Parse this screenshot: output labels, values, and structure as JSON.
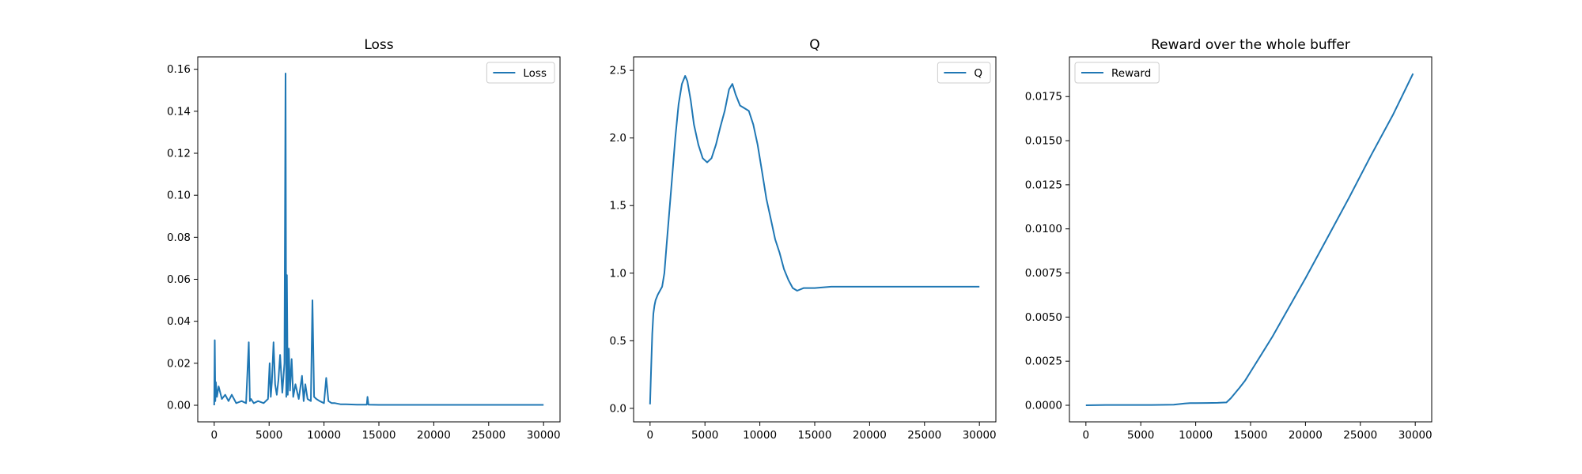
{
  "colors": {
    "series": "#1f77b4",
    "axes": "#000000",
    "legend_frame": "#cccccc",
    "background": "#ffffff"
  },
  "chart_data": [
    {
      "type": "line",
      "title": "Loss",
      "xlabel": "",
      "ylabel": "",
      "xlim": [
        -1500,
        31500
      ],
      "ylim": [
        -0.0079,
        0.1659
      ],
      "xticks": [
        0,
        5000,
        10000,
        15000,
        20000,
        25000,
        30000
      ],
      "xtick_labels": [
        "0",
        "5000",
        "10000",
        "15000",
        "20000",
        "25000",
        "30000"
      ],
      "yticks": [
        0.0,
        0.02,
        0.04,
        0.06,
        0.08,
        0.1,
        0.12,
        0.14,
        0.16
      ],
      "ytick_labels": [
        "0.00",
        "0.02",
        "0.04",
        "0.06",
        "0.08",
        "0.10",
        "0.12",
        "0.14",
        "0.16"
      ],
      "grid": false,
      "legend": "top-right",
      "series": [
        {
          "name": "Loss",
          "x": [
            0,
            50,
            100,
            150,
            250,
            400,
            700,
            1000,
            1300,
            1600,
            2000,
            2500,
            2900,
            3150,
            3250,
            3350,
            3600,
            4000,
            4500,
            4900,
            5050,
            5150,
            5250,
            5400,
            5550,
            5700,
            5850,
            6000,
            6200,
            6400,
            6500,
            6560,
            6620,
            6700,
            6800,
            6900,
            7050,
            7200,
            7400,
            7700,
            8000,
            8150,
            8300,
            8500,
            8800,
            8950,
            9100,
            9300,
            9600,
            10000,
            10200,
            10400,
            10700,
            11000,
            11500,
            12000,
            13000,
            13900,
            13960,
            14050,
            15000,
            17500,
            20000,
            22500,
            25000,
            27500,
            30000
          ],
          "y": [
            0.0,
            0.031,
            0.002,
            0.011,
            0.004,
            0.009,
            0.003,
            0.005,
            0.002,
            0.005,
            0.001,
            0.002,
            0.001,
            0.03,
            0.002,
            0.003,
            0.001,
            0.002,
            0.001,
            0.003,
            0.02,
            0.004,
            0.011,
            0.03,
            0.01,
            0.005,
            0.012,
            0.024,
            0.006,
            0.02,
            0.158,
            0.004,
            0.062,
            0.005,
            0.027,
            0.007,
            0.022,
            0.004,
            0.01,
            0.003,
            0.014,
            0.002,
            0.01,
            0.003,
            0.002,
            0.05,
            0.004,
            0.003,
            0.002,
            0.001,
            0.013,
            0.002,
            0.001,
            0.001,
            0.0005,
            0.0005,
            0.0003,
            0.0003,
            0.004,
            0.0003,
            0.0002,
            0.0002,
            0.0002,
            0.0002,
            0.0002,
            0.0002,
            0.0002
          ]
        }
      ]
    },
    {
      "type": "line",
      "title": "Q",
      "xlabel": "",
      "ylabel": "",
      "xlim": [
        -1500,
        31500
      ],
      "ylim": [
        -0.1,
        2.6
      ],
      "xticks": [
        0,
        5000,
        10000,
        15000,
        20000,
        25000,
        30000
      ],
      "xtick_labels": [
        "0",
        "5000",
        "10000",
        "15000",
        "20000",
        "25000",
        "30000"
      ],
      "yticks": [
        0.0,
        0.5,
        1.0,
        1.5,
        2.0,
        2.5
      ],
      "ytick_labels": [
        "0.0",
        "0.5",
        "1.0",
        "1.5",
        "2.0",
        "2.5"
      ],
      "grid": false,
      "legend": "top-right",
      "series": [
        {
          "name": "Q",
          "x": [
            0,
            100,
            200,
            300,
            400,
            500,
            700,
            900,
            1100,
            1300,
            1500,
            1700,
            2000,
            2300,
            2600,
            2900,
            3200,
            3400,
            3700,
            4000,
            4400,
            4800,
            5200,
            5600,
            6000,
            6400,
            6800,
            7200,
            7500,
            7800,
            8200,
            8600,
            9000,
            9400,
            9800,
            10200,
            10600,
            11000,
            11400,
            11800,
            12200,
            12600,
            13000,
            13400,
            14000,
            15000,
            16500,
            18000,
            20000,
            22000,
            24000,
            26000,
            28000,
            30000
          ],
          "y": [
            0.03,
            0.3,
            0.55,
            0.7,
            0.76,
            0.8,
            0.84,
            0.87,
            0.9,
            1.0,
            1.2,
            1.4,
            1.7,
            2.0,
            2.25,
            2.4,
            2.46,
            2.42,
            2.28,
            2.1,
            1.95,
            1.85,
            1.82,
            1.85,
            1.95,
            2.08,
            2.2,
            2.36,
            2.4,
            2.32,
            2.24,
            2.22,
            2.2,
            2.1,
            1.95,
            1.75,
            1.55,
            1.4,
            1.25,
            1.15,
            1.03,
            0.95,
            0.89,
            0.87,
            0.89,
            0.89,
            0.9,
            0.9,
            0.9,
            0.9,
            0.9,
            0.9,
            0.9,
            0.9
          ]
        }
      ]
    },
    {
      "type": "line",
      "title": "Reward over the whole buffer",
      "xlabel": "",
      "ylabel": "",
      "xlim": [
        -1500,
        31500
      ],
      "ylim": [
        -0.00094,
        0.01975
      ],
      "xticks": [
        0,
        5000,
        10000,
        15000,
        20000,
        25000,
        30000
      ],
      "xtick_labels": [
        "0",
        "5000",
        "10000",
        "15000",
        "20000",
        "25000",
        "30000"
      ],
      "yticks": [
        0.0,
        0.0025,
        0.005,
        0.0075,
        0.01,
        0.0125,
        0.015,
        0.0175
      ],
      "ytick_labels": [
        "0.0000",
        "0.0025",
        "0.0050",
        "0.0075",
        "0.0100",
        "0.0125",
        "0.0150",
        "0.0175"
      ],
      "grid": false,
      "legend": "top-left",
      "series": [
        {
          "name": "Reward",
          "x": [
            0,
            2000,
            4000,
            6000,
            8000,
            9000,
            9500,
            10000,
            11000,
            12000,
            12800,
            13200,
            13600,
            14000,
            14500,
            15000,
            16000,
            17000,
            18000,
            19000,
            20000,
            22000,
            24000,
            26000,
            28000,
            29800
          ],
          "y": [
            0.0,
            2e-05,
            2e-05,
            2e-05,
            3e-05,
            0.0001,
            0.00012,
            0.00012,
            0.00013,
            0.00014,
            0.00016,
            0.0004,
            0.0007,
            0.001,
            0.0014,
            0.0019,
            0.0029,
            0.0039,
            0.005,
            0.0061,
            0.0072,
            0.0095,
            0.0118,
            0.0142,
            0.0165,
            0.0188
          ]
        }
      ]
    }
  ]
}
